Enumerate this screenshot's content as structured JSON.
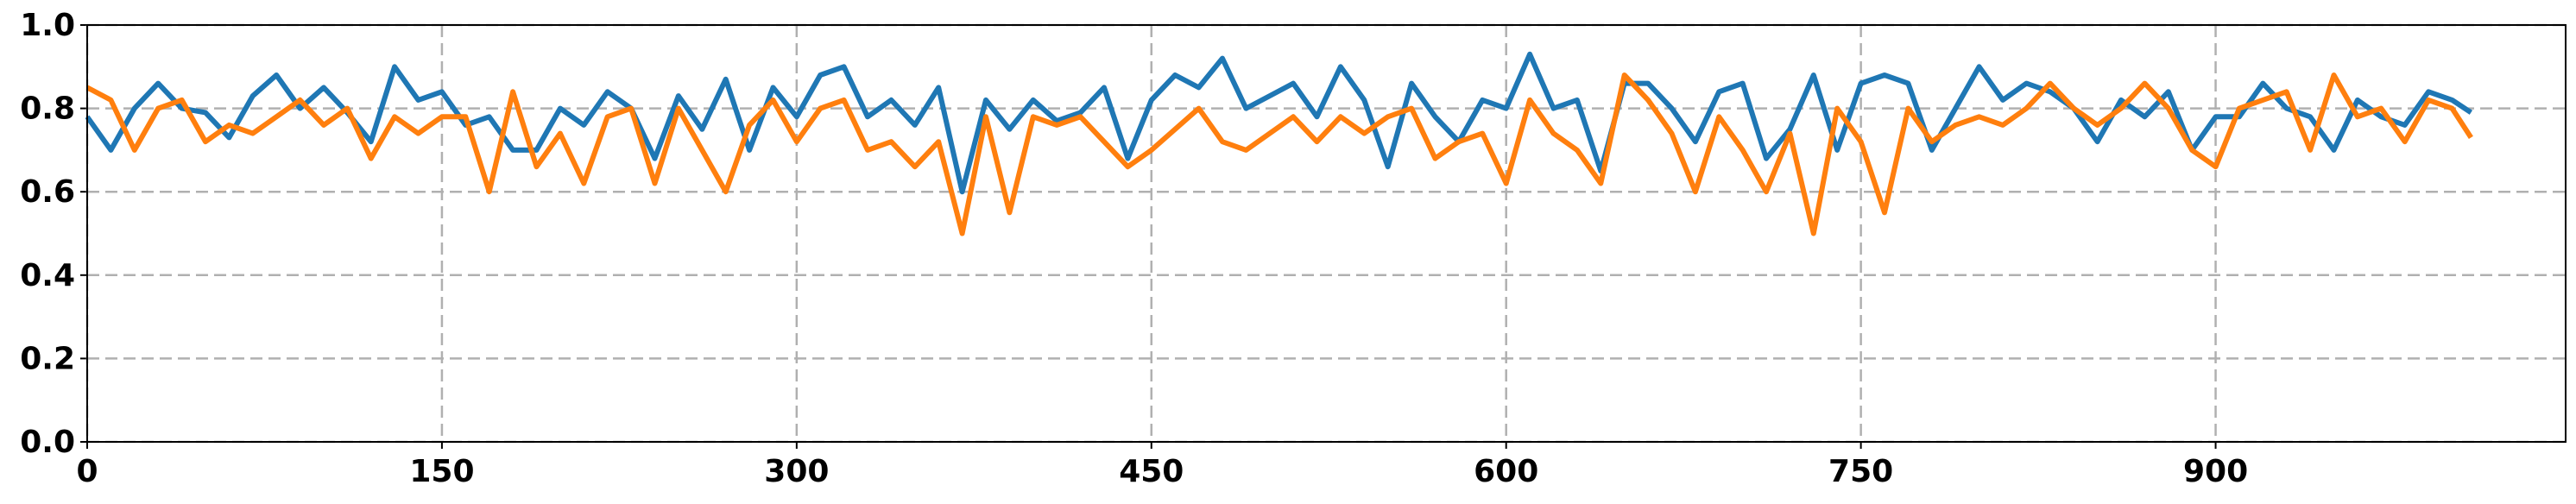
{
  "chart_data": {
    "type": "line",
    "x": [
      0,
      10,
      20,
      30,
      40,
      50,
      60,
      70,
      80,
      90,
      100,
      110,
      120,
      130,
      140,
      150,
      160,
      170,
      180,
      190,
      200,
      210,
      220,
      230,
      240,
      250,
      260,
      270,
      280,
      290,
      300,
      310,
      320,
      330,
      340,
      350,
      360,
      370,
      380,
      390,
      400,
      410,
      420,
      430,
      440,
      450,
      460,
      470,
      480,
      490,
      500,
      510,
      520,
      530,
      540,
      550,
      560,
      570,
      580,
      590,
      600,
      610,
      620,
      630,
      640,
      650,
      660,
      670,
      680,
      690,
      700,
      710,
      720,
      730,
      740,
      750,
      760,
      770,
      780,
      790,
      800,
      810,
      820,
      830,
      840,
      850,
      860,
      870,
      880,
      890,
      900,
      910,
      920,
      930,
      940,
      950,
      960,
      970,
      980,
      990,
      1000,
      1008
    ],
    "series": [
      {
        "color": "#1f77b4",
        "values": [
          0.78,
          0.7,
          0.8,
          0.86,
          0.8,
          0.79,
          0.73,
          0.83,
          0.88,
          0.8,
          0.85,
          0.79,
          0.72,
          0.9,
          0.82,
          0.84,
          0.76,
          0.78,
          0.7,
          0.7,
          0.8,
          0.76,
          0.84,
          0.8,
          0.68,
          0.83,
          0.75,
          0.87,
          0.7,
          0.85,
          0.78,
          0.88,
          0.9,
          0.78,
          0.82,
          0.76,
          0.85,
          0.6,
          0.82,
          0.75,
          0.82,
          0.77,
          0.79,
          0.85,
          0.68,
          0.82,
          0.88,
          0.85,
          0.92,
          0.8,
          0.83,
          0.86,
          0.78,
          0.9,
          0.82,
          0.66,
          0.86,
          0.78,
          0.72,
          0.82,
          0.8,
          0.93,
          0.8,
          0.82,
          0.65,
          0.86,
          0.86,
          0.8,
          0.72,
          0.84,
          0.86,
          0.68,
          0.75,
          0.88,
          0.7,
          0.86,
          0.88,
          0.86,
          0.7,
          0.8,
          0.9,
          0.82,
          0.86,
          0.84,
          0.8,
          0.72,
          0.82,
          0.78,
          0.84,
          0.7,
          0.78,
          0.78,
          0.86,
          0.8,
          0.78,
          0.7,
          0.82,
          0.78,
          0.76,
          0.84,
          0.82,
          0.79
        ]
      },
      {
        "color": "#ff7f0e",
        "values": [
          0.85,
          0.82,
          0.7,
          0.8,
          0.82,
          0.72,
          0.76,
          0.74,
          0.78,
          0.82,
          0.76,
          0.8,
          0.68,
          0.78,
          0.74,
          0.78,
          0.78,
          0.6,
          0.84,
          0.66,
          0.74,
          0.62,
          0.78,
          0.8,
          0.62,
          0.8,
          0.7,
          0.6,
          0.76,
          0.82,
          0.72,
          0.8,
          0.82,
          0.7,
          0.72,
          0.66,
          0.72,
          0.5,
          0.78,
          0.55,
          0.78,
          0.76,
          0.78,
          0.72,
          0.66,
          0.7,
          0.75,
          0.8,
          0.72,
          0.7,
          0.74,
          0.78,
          0.72,
          0.78,
          0.74,
          0.78,
          0.8,
          0.68,
          0.72,
          0.74,
          0.62,
          0.82,
          0.74,
          0.7,
          0.62,
          0.88,
          0.82,
          0.74,
          0.6,
          0.78,
          0.7,
          0.6,
          0.74,
          0.5,
          0.8,
          0.72,
          0.55,
          0.8,
          0.72,
          0.76,
          0.78,
          0.76,
          0.8,
          0.86,
          0.8,
          0.76,
          0.8,
          0.86,
          0.8,
          0.7,
          0.66,
          0.8,
          0.82,
          0.84,
          0.7,
          0.88,
          0.78,
          0.8,
          0.72,
          0.82,
          0.8,
          0.73
        ]
      }
    ],
    "xlim": [
      0,
      1048
    ],
    "ylim": [
      0,
      1.0
    ],
    "xticks": [
      0,
      150,
      300,
      450,
      600,
      750,
      900
    ],
    "yticks": [
      {
        "value": 0,
        "label": "0.0"
      },
      {
        "value": 0.2,
        "label": "0.2"
      },
      {
        "value": 0.4,
        "label": "0.4"
      },
      {
        "value": 0.6,
        "label": "0.6"
      },
      {
        "value": 0.8,
        "label": "0.8"
      },
      {
        "value": 1.0,
        "label": "1.0"
      }
    ],
    "grid": true
  }
}
